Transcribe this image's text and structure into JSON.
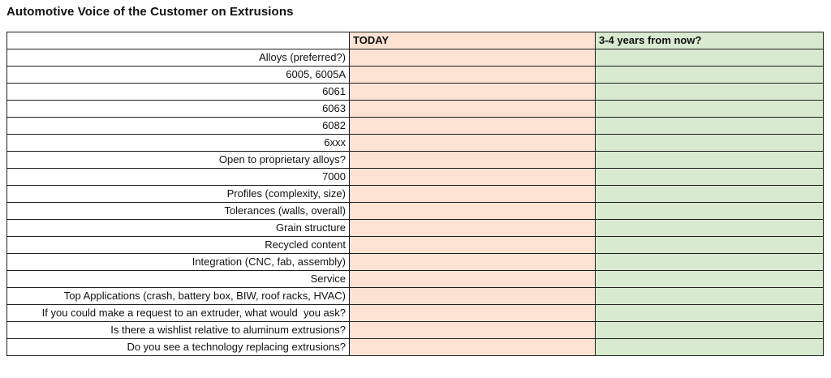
{
  "page": {
    "title": "Automotive Voice of the Customer on Extrusions"
  },
  "table": {
    "columns": [
      {
        "label": "",
        "role": "row-label-column"
      },
      {
        "label": "TODAY",
        "role": "today-column"
      },
      {
        "label": "3-4 years from now?",
        "role": "future-column"
      }
    ],
    "rows": [
      "Alloys (preferred?)",
      "6005, 6005A",
      "6061",
      "6063",
      "6082",
      "6xxx",
      "Open to proprietary alloys?",
      "7000",
      "Profiles (complexity, size)",
      "Tolerances (walls, overall)",
      "Grain structure",
      "Recycled content",
      "Integration (CNC, fab, assembly)",
      "Service",
      "Top Applications (crash, battery box, BIW, roof racks, HVAC)",
      "If you could make a request to an extruder, what would  you ask?",
      "Is there a wishlist relative to aluminum extrusions?",
      "Do you see a technology replacing extrusions?"
    ],
    "colors": {
      "today_bg": "#fbe2d2",
      "future_bg": "#d8ead0",
      "border": "#1f1f1f",
      "text": "#111111"
    }
  }
}
